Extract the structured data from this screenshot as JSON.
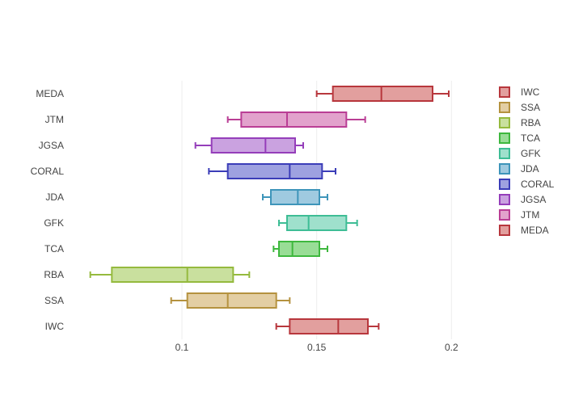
{
  "chart_data": {
    "type": "box",
    "orientation": "horizontal",
    "title": "",
    "xlabel": "",
    "ylabel": "",
    "xlim": [
      0.0595,
      0.2095
    ],
    "x_ticks": [
      0.1,
      0.15,
      0.2
    ],
    "x_tick_labels": [
      "0.1",
      "0.15",
      "0.2"
    ],
    "grid": {
      "vertical": true,
      "horizontal": false
    },
    "legend": {
      "position": "right",
      "order": [
        "IWC",
        "SSA",
        "RBA",
        "TCA",
        "GFK",
        "JDA",
        "CORAL",
        "JGSA",
        "JTM",
        "MEDA"
      ]
    },
    "categories": [
      "IWC",
      "SSA",
      "RBA",
      "TCA",
      "GFK",
      "JDA",
      "CORAL",
      "JGSA",
      "JTM",
      "MEDA"
    ],
    "series": [
      {
        "name": "IWC",
        "color": "#b8373d",
        "fill": "#e29f9e",
        "min": 0.135,
        "q1": 0.14,
        "median": 0.158,
        "q3": 0.169,
        "max": 0.173
      },
      {
        "name": "SSA",
        "color": "#b5923f",
        "fill": "#e3cea3",
        "min": 0.096,
        "q1": 0.102,
        "median": 0.117,
        "q3": 0.135,
        "max": 0.14
      },
      {
        "name": "RBA",
        "color": "#95ba3e",
        "fill": "#c9e09e",
        "min": 0.066,
        "q1": 0.074,
        "median": 0.102,
        "q3": 0.119,
        "max": 0.125
      },
      {
        "name": "TCA",
        "color": "#3eb83e",
        "fill": "#99dd96",
        "min": 0.134,
        "q1": 0.136,
        "median": 0.141,
        "q3": 0.151,
        "max": 0.154
      },
      {
        "name": "GFK",
        "color": "#3ebd95",
        "fill": "#9fe0cc",
        "min": 0.136,
        "q1": 0.139,
        "median": 0.147,
        "q3": 0.161,
        "max": 0.165
      },
      {
        "name": "JDA",
        "color": "#3e95ba",
        "fill": "#9fcae0",
        "min": 0.13,
        "q1": 0.133,
        "median": 0.143,
        "q3": 0.151,
        "max": 0.154
      },
      {
        "name": "CORAL",
        "color": "#3b3db8",
        "fill": "#9ea1e0",
        "min": 0.11,
        "q1": 0.117,
        "median": 0.14,
        "q3": 0.152,
        "max": 0.157
      },
      {
        "name": "JGSA",
        "color": "#953eba",
        "fill": "#caa2e0",
        "min": 0.105,
        "q1": 0.111,
        "median": 0.131,
        "q3": 0.142,
        "max": 0.145
      },
      {
        "name": "JTM",
        "color": "#ba3e95",
        "fill": "#e2a2cc",
        "min": 0.117,
        "q1": 0.122,
        "median": 0.139,
        "q3": 0.161,
        "max": 0.168
      },
      {
        "name": "MEDA",
        "color": "#b8373d",
        "fill": "#e29f9e",
        "min": 0.15,
        "q1": 0.156,
        "median": 0.174,
        "q3": 0.193,
        "max": 0.199
      }
    ]
  }
}
